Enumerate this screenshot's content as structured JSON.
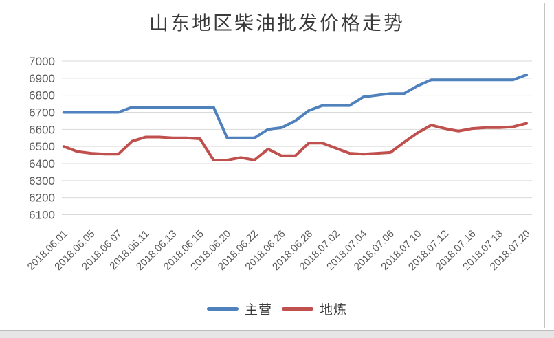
{
  "chart": {
    "title": "山东地区柴油批发价格走势",
    "legend": {
      "main_label": "主营",
      "local_label": "地炼"
    }
  },
  "chart_data": {
    "type": "line",
    "title": "山东地区柴油批发价格走势",
    "xlabel": "",
    "ylabel": "",
    "ylim": [
      6100,
      7000
    ],
    "ytick_step": 100,
    "grid": true,
    "legend_position": "bottom",
    "x_labels": [
      "2018.06.01",
      "2018.06.05",
      "2018.06.07",
      "2018.06.11",
      "2018.06.13",
      "2018.06.15",
      "2018.06.20",
      "2018.06.22",
      "2018.06.26",
      "2018.06.28",
      "2018.07.02",
      "2018.07.04",
      "2018.07.06",
      "2018.07.10",
      "2018.07.12",
      "2018.07.16",
      "2018.07.18",
      "2018.07.20"
    ],
    "label_every": 2,
    "series": [
      {
        "name": "主营",
        "color": "#4F81BD",
        "values": [
          6700,
          6700,
          6700,
          6700,
          6700,
          6730,
          6730,
          6730,
          6730,
          6730,
          6730,
          6730,
          6550,
          6550,
          6550,
          6600,
          6610,
          6650,
          6710,
          6740,
          6740,
          6740,
          6790,
          6800,
          6810,
          6810,
          6855,
          6890,
          6890,
          6890,
          6890,
          6890,
          6890,
          6890,
          6920
        ]
      },
      {
        "name": "地炼",
        "color": "#C0504D",
        "values": [
          6500,
          6470,
          6460,
          6455,
          6455,
          6530,
          6555,
          6555,
          6550,
          6550,
          6545,
          6420,
          6420,
          6435,
          6420,
          6485,
          6445,
          6445,
          6520,
          6520,
          6490,
          6460,
          6455,
          6460,
          6465,
          6525,
          6580,
          6625,
          6605,
          6590,
          6605,
          6610,
          6610,
          6615,
          6635
        ]
      }
    ],
    "style": {
      "gridline_color": "#d9d9d9",
      "tick_label_color": "#595959",
      "title_color": "#3a3a3a",
      "line_width": 4
    }
  }
}
